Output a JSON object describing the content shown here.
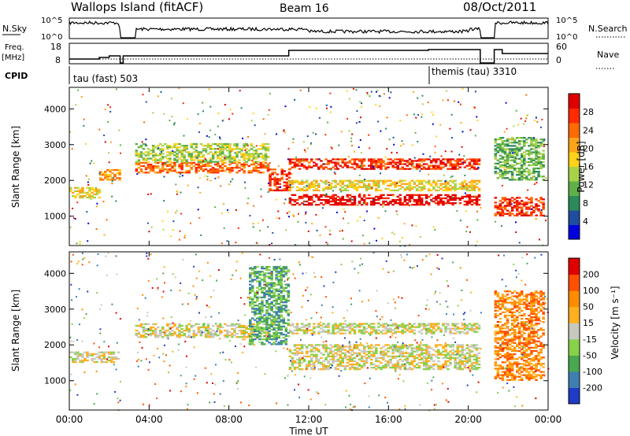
{
  "header": {
    "station": "Wallops Island (fitACF)",
    "beam": "Beam 16",
    "date": "08/Oct/2011"
  },
  "top_panels": {
    "nsky": {
      "label": "N.Sky",
      "ticks": [
        "10^5",
        "10^0"
      ],
      "right_label": "N.Search",
      "right_ticks": [
        "10^5",
        "10^0"
      ]
    },
    "freq": {
      "label_line1": "Freq.",
      "label_line2": "[MHz]",
      "ticks": [
        "18",
        "8"
      ],
      "right_label": "Nave",
      "right_ticks": [
        "60",
        "0"
      ]
    },
    "cpid": {
      "label": "CPID",
      "segments": [
        {
          "name": "tau (fast)",
          "id": "503",
          "start_hour": 0
        },
        {
          "name": "themis (tau)",
          "id": "3310",
          "start_hour": 18
        }
      ]
    }
  },
  "chart_data": [
    {
      "type": "heatmap",
      "title": "Power",
      "xlabel": "Time UT",
      "ylabel": "Slant Range [km]",
      "x_ticks": [
        "00:00",
        "04:00",
        "08:00",
        "12:00",
        "16:00",
        "20:00",
        "00:00"
      ],
      "xlim_hours": [
        0,
        24
      ],
      "ylim_km": [
        180,
        4600
      ],
      "y_ticks": [
        1000,
        2000,
        3000,
        4000
      ],
      "colorbar": {
        "label": "Power [dB]",
        "ticks": [
          "4",
          "8",
          "12",
          "16",
          "20",
          "24",
          "28"
        ],
        "colors": [
          "#0000dd",
          "#1f4ea1",
          "#2d8a5a",
          "#5fb048",
          "#a8d24a",
          "#ffd21a",
          "#ffa31a",
          "#ff6a00",
          "#ff2a00",
          "#e00000"
        ]
      },
      "bands": [
        {
          "t0": 0.0,
          "t1": 1.5,
          "r0": 1500,
          "r1": 1800,
          "level": 5
        },
        {
          "t0": 1.5,
          "t1": 2.5,
          "r0": 2000,
          "r1": 2300,
          "level": 6
        },
        {
          "t0": 3.3,
          "t1": 10.0,
          "r0": 2200,
          "r1": 2500,
          "level": 7
        },
        {
          "t0": 3.3,
          "t1": 10.0,
          "r0": 2500,
          "r1": 3000,
          "level": 4
        },
        {
          "t0": 10.0,
          "t1": 11.0,
          "r0": 1700,
          "r1": 2300,
          "level": 8
        },
        {
          "t0": 11.0,
          "t1": 20.6,
          "r0": 1300,
          "r1": 1600,
          "level": 9
        },
        {
          "t0": 11.0,
          "t1": 20.6,
          "r0": 2300,
          "r1": 2600,
          "level": 8
        },
        {
          "t0": 11.0,
          "t1": 20.6,
          "r0": 1700,
          "r1": 2000,
          "level": 5
        },
        {
          "t0": 21.3,
          "t1": 23.8,
          "r0": 1000,
          "r1": 1500,
          "level": 8
        },
        {
          "t0": 21.3,
          "t1": 23.8,
          "r0": 2000,
          "r1": 3200,
          "level": 3
        }
      ]
    },
    {
      "type": "heatmap",
      "title": "Velocity",
      "xlabel": "Time UT",
      "ylabel": "Slant Range [km]",
      "x_ticks": [
        "00:00",
        "04:00",
        "08:00",
        "12:00",
        "16:00",
        "20:00",
        "00:00"
      ],
      "xlim_hours": [
        0,
        24
      ],
      "ylim_km": [
        180,
        4600
      ],
      "y_ticks": [
        1000,
        2000,
        3000,
        4000
      ],
      "colorbar": {
        "label": "Velocity [m s⁻¹]",
        "ticks": [
          "200",
          "100",
          "50",
          "15",
          "-15",
          "-50",
          "-100",
          "-200"
        ],
        "colors": [
          "#1e3cc8",
          "#3f7fb0",
          "#4aa850",
          "#88d24a",
          "#c8c8c0",
          "#ffb020",
          "#ff8c00",
          "#ff5000",
          "#e00000"
        ]
      },
      "bands": [
        {
          "t0": 0.0,
          "t1": 2.5,
          "r0": 1500,
          "r1": 1800,
          "level": 4
        },
        {
          "t0": 3.3,
          "t1": 10.0,
          "r0": 2200,
          "r1": 2600,
          "level": 4
        },
        {
          "t0": 9.0,
          "t1": 11.0,
          "r0": 2000,
          "r1": 4200,
          "level": 2
        },
        {
          "t0": 11.0,
          "t1": 20.6,
          "r0": 1300,
          "r1": 2000,
          "level": 4
        },
        {
          "t0": 11.0,
          "t1": 20.6,
          "r0": 2300,
          "r1": 2600,
          "level": 4
        },
        {
          "t0": 21.3,
          "t1": 23.8,
          "r0": 1000,
          "r1": 3500,
          "level": 6
        }
      ]
    }
  ]
}
